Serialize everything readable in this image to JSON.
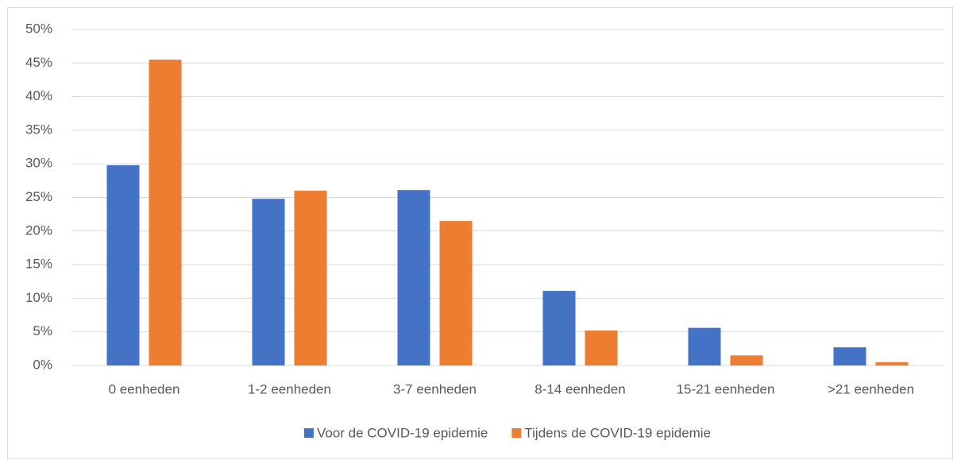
{
  "chart_data": {
    "type": "bar",
    "categories": [
      "0 eenheden",
      "1-2 eenheden",
      "3-7 eenheden",
      "8-14 eenheden",
      "15-21 eenheden",
      ">21 eenheden"
    ],
    "series": [
      {
        "name": "Voor de COVID-19 epidemie",
        "color": "#4472c4",
        "values": [
          29.8,
          24.8,
          26.1,
          11.1,
          5.6,
          2.7
        ]
      },
      {
        "name": "Tijdens de COVID-19 epidemie",
        "color": "#ed7d31",
        "values": [
          45.5,
          26.0,
          21.5,
          5.2,
          1.5,
          0.5
        ]
      }
    ],
    "ylim": [
      0,
      50
    ],
    "yticks": [
      {
        "value": 0,
        "label": "0%"
      },
      {
        "value": 5,
        "label": "5%"
      },
      {
        "value": 10,
        "label": "10%"
      },
      {
        "value": 15,
        "label": "15%"
      },
      {
        "value": 20,
        "label": "20%"
      },
      {
        "value": 25,
        "label": "25%"
      },
      {
        "value": 30,
        "label": "30%"
      },
      {
        "value": 35,
        "label": "35%"
      },
      {
        "value": 40,
        "label": "40%"
      },
      {
        "value": 45,
        "label": "45%"
      },
      {
        "value": 50,
        "label": "50%"
      }
    ],
    "grid": true,
    "legend": "bottom"
  }
}
